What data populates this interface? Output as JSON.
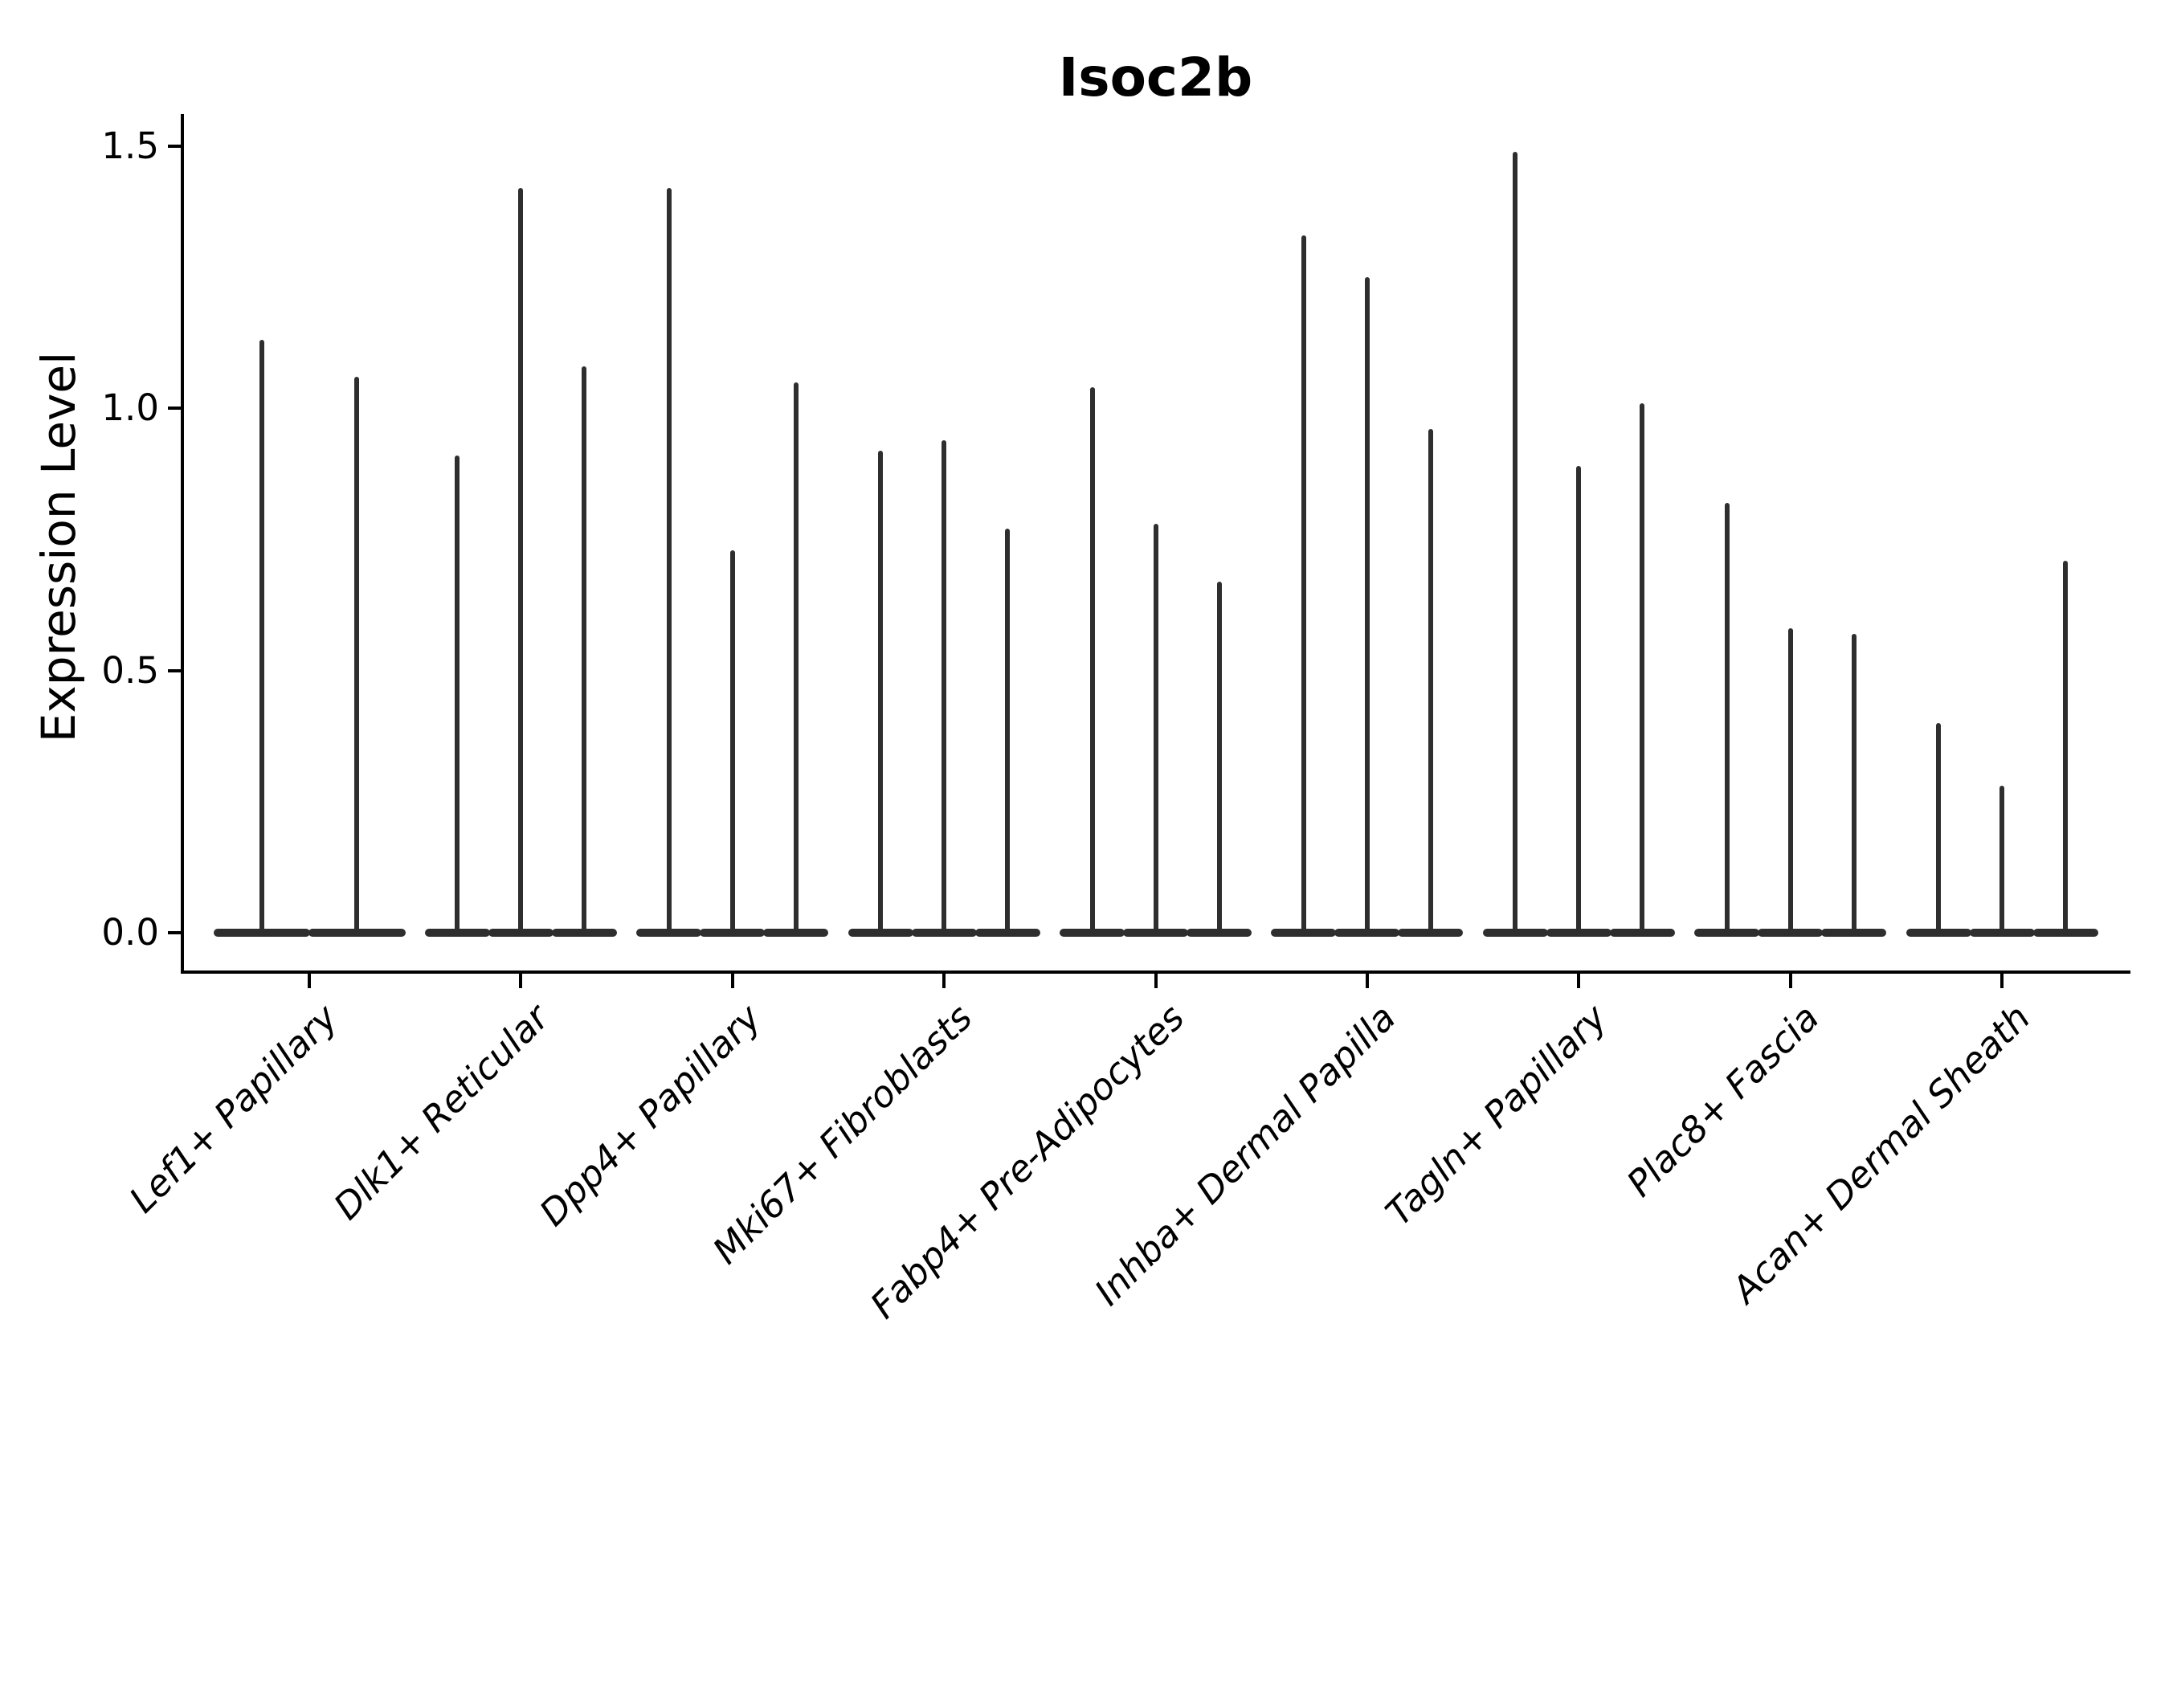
{
  "chart_data": {
    "type": "violin",
    "title": "Isoc2b",
    "xlabel": "",
    "ylabel": "Expression Level",
    "yticks": [
      {
        "label": "0.0",
        "value": 0.0
      },
      {
        "label": "0.5",
        "value": 0.5
      },
      {
        "label": "1.0",
        "value": 1.0
      },
      {
        "label": "1.5",
        "value": 1.5
      }
    ],
    "ylim": [
      -0.075,
      1.561
    ],
    "grid": false,
    "legend": false,
    "categories": [
      "Lef1+ Papillary",
      "Dlk1+ Reticular",
      "Dpp4+ Papillary",
      "Mki67+ Fibroblasts",
      "Fabp4+ Pre-Adipocytes",
      "Inhba+ Dermal Papilla",
      "Tagln+ Papillary",
      "Plac8+ Fascia",
      "Acan+ Dermal Sheath"
    ],
    "groups": [
      {
        "category": "Lef1+ Papillary",
        "violin_max_expression": [
          1.13,
          1.06
        ]
      },
      {
        "category": "Dlk1+ Reticular",
        "violin_max_expression": [
          0.91,
          1.42,
          1.08
        ]
      },
      {
        "category": "Dpp4+ Papillary",
        "violin_max_expression": [
          1.42,
          0.73,
          1.05
        ]
      },
      {
        "category": "Mki67+ Fibroblasts",
        "violin_max_expression": [
          0.92,
          0.94,
          0.77
        ]
      },
      {
        "category": "Fabp4+ Pre-Adipocytes",
        "violin_max_expression": [
          1.04,
          0.78,
          0.67
        ]
      },
      {
        "category": "Inhba+ Dermal Papilla",
        "violin_max_expression": [
          1.33,
          1.25,
          0.96
        ]
      },
      {
        "category": "Tagln+ Papillary",
        "violin_max_expression": [
          1.49,
          0.89,
          1.01
        ]
      },
      {
        "category": "Plac8+ Fascia",
        "violin_max_expression": [
          0.82,
          0.58,
          0.57
        ]
      },
      {
        "category": "Acan+ Dermal Sheath",
        "violin_max_expression": [
          0.4,
          0.28,
          0.71
        ]
      }
    ],
    "violin_distribution_note": "most mass concentrated at 0 (flat wide base), thin spike up to max",
    "colors": {
      "violin": "#2e2e2f",
      "axis": "#000000",
      "background": "#ffffff"
    }
  }
}
